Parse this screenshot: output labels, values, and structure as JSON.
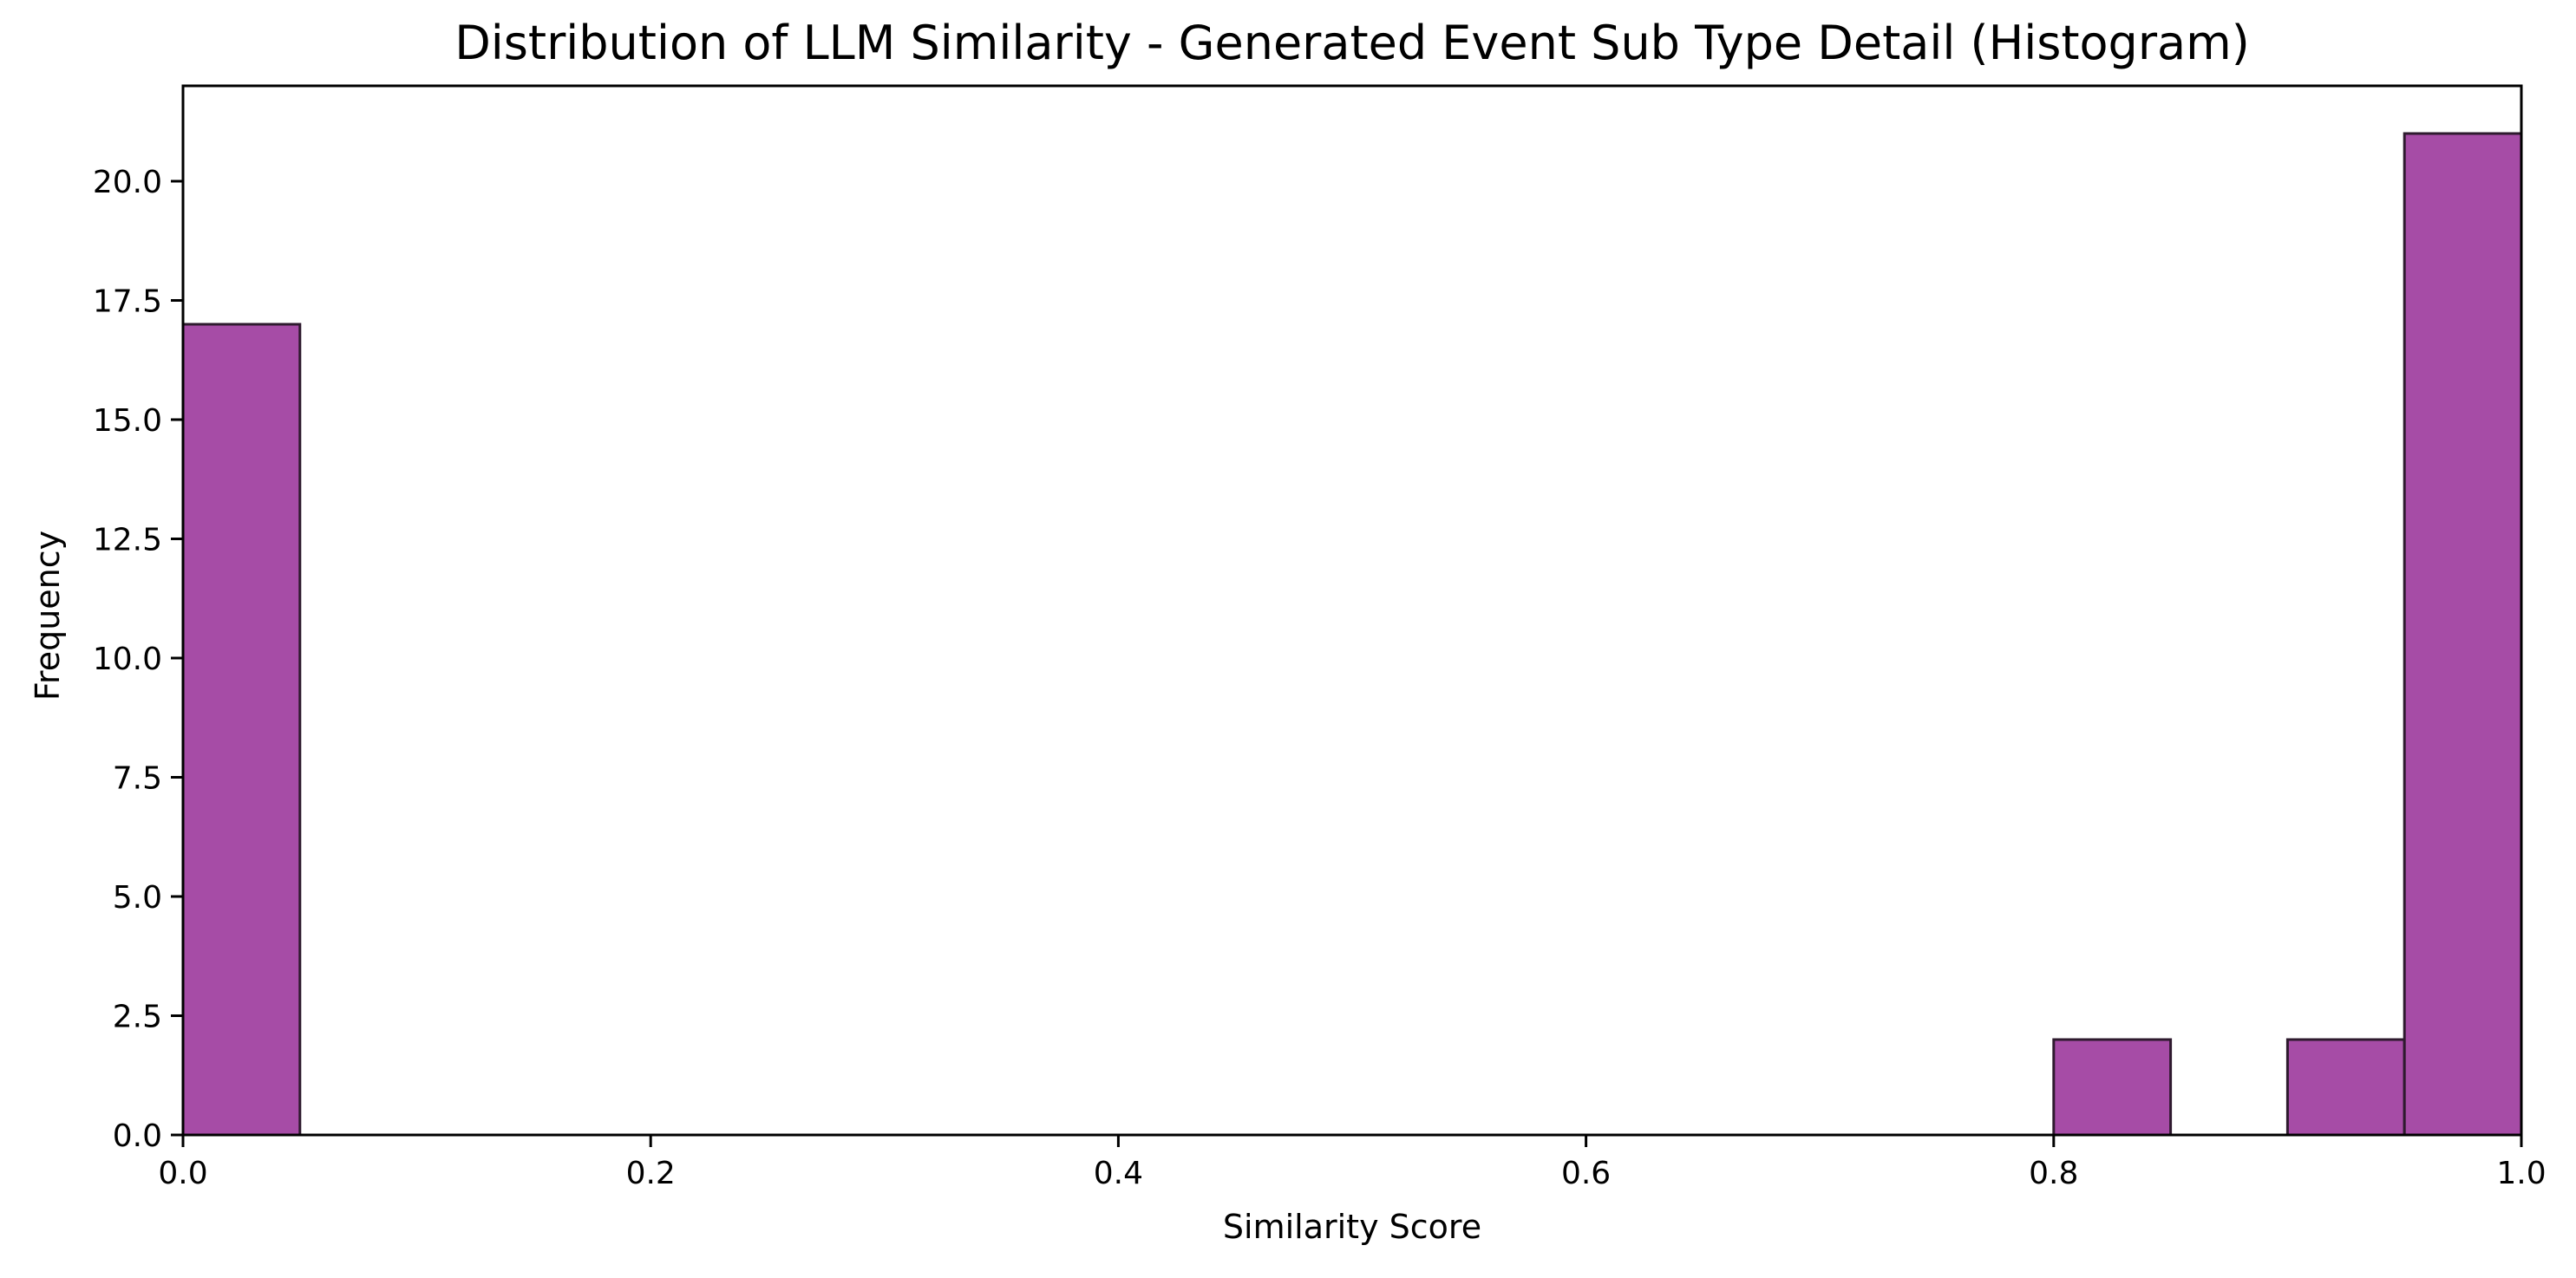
{
  "chart_data": {
    "type": "bar",
    "title": "Distribution of LLM Similarity - Generated Event Sub Type Detail (Histogram)",
    "xlabel": "Similarity Score",
    "ylabel": "Frequency",
    "xlim": [
      0.0,
      1.0
    ],
    "ylim": [
      0,
      22
    ],
    "x_ticks": [
      "0.0",
      "0.2",
      "0.4",
      "0.6",
      "0.8",
      "1.0"
    ],
    "y_ticks": [
      "0.0",
      "2.5",
      "5.0",
      "7.5",
      "10.0",
      "12.5",
      "15.0",
      "17.5",
      "20.0"
    ],
    "bin_width": 0.05,
    "bins": [
      {
        "start": 0.0,
        "end": 0.05,
        "count": 17
      },
      {
        "start": 0.8,
        "end": 0.85,
        "count": 2
      },
      {
        "start": 0.9,
        "end": 0.95,
        "count": 2
      },
      {
        "start": 0.95,
        "end": 1.0,
        "count": 21
      }
    ],
    "bar_color": "#a64ca6",
    "edge_color": "#2e1a2e",
    "grid": false,
    "legend": "none"
  }
}
